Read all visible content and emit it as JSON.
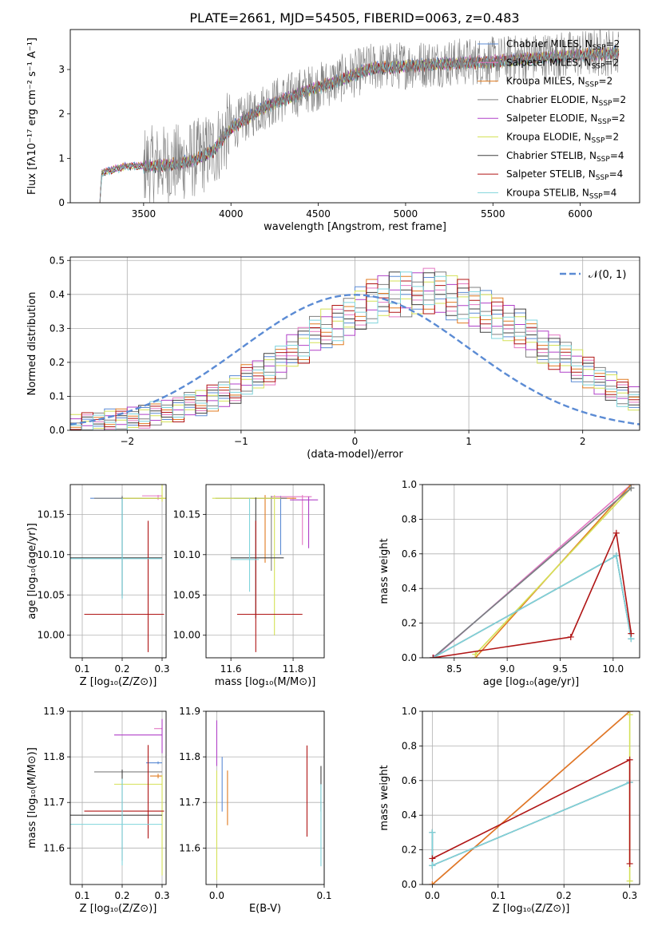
{
  "figure": {
    "title": "PLATE=2661, MJD=54505, FIBERID=0063, z=0.483",
    "legend_entries": [
      {
        "label": "Chabrier MILES, N",
        "sub": "SSP",
        "suffix": "=2",
        "color": "#5b8bd4"
      },
      {
        "label": "Salpeter MILES, N",
        "sub": "SSP",
        "suffix": "=2",
        "color": "#e377c2"
      },
      {
        "label": "Kroupa MILES, N",
        "sub": "SSP",
        "suffix": "=2",
        "color": "#e07b20"
      },
      {
        "label": "Chabrier ELODIE, N",
        "sub": "SSP",
        "suffix": "=2",
        "color": "#7f7f7f"
      },
      {
        "label": "Salpeter ELODIE, N",
        "sub": "SSP",
        "suffix": "=2",
        "color": "#b040c8"
      },
      {
        "label": "Kroupa ELODIE, N",
        "sub": "SSP",
        "suffix": "=2",
        "color": "#d4e157"
      },
      {
        "label": "Chabrier STELIB, N",
        "sub": "SSP",
        "suffix": "=4",
        "color": "#404040"
      },
      {
        "label": "Salpeter STELIB, N",
        "sub": "SSP",
        "suffix": "=4",
        "color": "#b01515"
      },
      {
        "label": "Kroupa STELIB, N",
        "sub": "SSP",
        "suffix": "=4",
        "color": "#7fd4dc"
      }
    ]
  },
  "chart_data": [
    {
      "id": "spectrum",
      "type": "line",
      "xlabel": "wavelength [Angstrom, rest frame]",
      "ylabel": "Flux [fλ10⁻¹⁷ erg cm⁻² s⁻¹ A⁻¹]",
      "xlim": [
        3080,
        6340
      ],
      "ylim": [
        0,
        3.9
      ],
      "xticks": [
        3500,
        4000,
        4500,
        5000,
        5500,
        6000
      ],
      "yticks": [
        0,
        1,
        2,
        3
      ],
      "data_color": "#808080",
      "continuum_anchors": [
        [
          3250,
          0.0
        ],
        [
          3260,
          0.7
        ],
        [
          3400,
          0.85
        ],
        [
          3560,
          0.85
        ],
        [
          3700,
          0.9
        ],
        [
          3800,
          1.0
        ],
        [
          3900,
          1.2
        ],
        [
          4000,
          1.7
        ],
        [
          4200,
          2.2
        ],
        [
          4400,
          2.5
        ],
        [
          4600,
          2.75
        ],
        [
          4800,
          3.05
        ],
        [
          5000,
          3.1
        ],
        [
          5200,
          3.15
        ],
        [
          5500,
          3.2
        ],
        [
          5800,
          3.3
        ],
        [
          6200,
          3.4
        ]
      ]
    },
    {
      "id": "residuals",
      "type": "line",
      "xlabel": "(data-model)/error",
      "ylabel": "Normed distribution",
      "xlim": [
        -2.5,
        2.5
      ],
      "ylim": [
        0,
        0.51
      ],
      "xticks": [
        -2,
        -1,
        0,
        1,
        2
      ],
      "yticks": [
        0.0,
        0.1,
        0.2,
        0.3,
        0.4,
        0.5
      ],
      "normal_label": "𝒩(0, 1)",
      "normal_color": "#5b8bd4",
      "hist_bin_width": 0.1,
      "hist_values": [
        0.015,
        0.02,
        0.025,
        0.03,
        0.03,
        0.035,
        0.04,
        0.05,
        0.06,
        0.06,
        0.075,
        0.08,
        0.095,
        0.11,
        0.12,
        0.15,
        0.16,
        0.18,
        0.2,
        0.24,
        0.25,
        0.28,
        0.3,
        0.31,
        0.34,
        0.36,
        0.38,
        0.39,
        0.4,
        0.4,
        0.41,
        0.41,
        0.4,
        0.39,
        0.38,
        0.37,
        0.35,
        0.33,
        0.31,
        0.3,
        0.27,
        0.25,
        0.23,
        0.21,
        0.19,
        0.17,
        0.15,
        0.13,
        0.11,
        0.09
      ]
    },
    {
      "id": "age-vs-Z",
      "type": "scatter",
      "xlabel": "Z [log₁₀(Z/Z⊙)]",
      "ylabel": "age  [log₁₀(age/yr)]",
      "xlim": [
        0.07,
        0.31
      ],
      "ylim": [
        9.972,
        10.187
      ],
      "xticks": [
        0.1,
        0.2,
        0.3
      ],
      "yticks": [
        10.0,
        10.05,
        10.1,
        10.15
      ],
      "points": [
        {
          "series": 0,
          "x": 0.2,
          "xerr": [
            0.08,
            0.1
          ],
          "y": 10.17,
          "yerr": [
            0.12,
            0.003
          ]
        },
        {
          "series": 1,
          "x": 0.29,
          "xerr": [
            0.04,
            0.01
          ],
          "y": 10.173,
          "yerr": [
            0.005,
            0.001
          ]
        },
        {
          "series": 2,
          "x": 0.3,
          "xerr": [
            0.1,
            0.01
          ],
          "y": 10.17,
          "yerr": [
            0.004,
            0.004
          ]
        },
        {
          "series": 3,
          "x": 0.2,
          "xerr": [
            0.07,
            0.1
          ],
          "y": 10.17,
          "yerr": [
            0.12,
            0.003
          ]
        },
        {
          "series": 5,
          "x": 0.3,
          "xerr": [
            0.1,
            0.01
          ],
          "y": 10.17,
          "yerr": [
            0.004,
            0.17
          ]
        },
        {
          "series": 6,
          "x": 0.2,
          "xerr": [
            0.13,
            0.1
          ],
          "y": 10.096,
          "yerr": [
            0.05,
            0.075
          ]
        },
        {
          "series": 7,
          "x": 0.265,
          "xerr": [
            0.16,
            0.04
          ],
          "y": 10.026,
          "yerr": [
            0.047,
            0.116
          ]
        },
        {
          "series": 8,
          "x": 0.2,
          "xerr": [
            0.13,
            0.1
          ],
          "y": 10.095,
          "yerr": [
            0.05,
            0.075
          ]
        }
      ]
    },
    {
      "id": "age-vs-mass",
      "type": "scatter",
      "xlabel": "mass [log₁₀(M/M⊙)]",
      "ylabel": "",
      "xlim": [
        11.52,
        11.9
      ],
      "ylim": [
        9.972,
        10.187
      ],
      "xticks": [
        11.6,
        11.8
      ],
      "yticks": [
        10.0,
        10.05,
        10.1,
        10.15
      ],
      "points": [
        {
          "series": 0,
          "x": 11.76,
          "xerr": [
            0.15,
            0.02
          ],
          "y": 10.17,
          "yerr": [
            0.07,
            0.003
          ]
        },
        {
          "series": 1,
          "x": 11.83,
          "xerr": [
            0.1,
            0.03
          ],
          "y": 10.172,
          "yerr": [
            0.06,
            0.002
          ]
        },
        {
          "series": 2,
          "x": 11.71,
          "xerr": [
            0.04,
            0.1
          ],
          "y": 10.17,
          "yerr": [
            0.08,
            0.004
          ]
        },
        {
          "series": 3,
          "x": 11.73,
          "xerr": [
            0.18,
            0.05
          ],
          "y": 10.17,
          "yerr": [
            0.09,
            0.003
          ]
        },
        {
          "series": 4,
          "x": 11.85,
          "xerr": [
            0.06,
            0.03
          ],
          "y": 10.168,
          "yerr": [
            0.06,
            0.004
          ]
        },
        {
          "series": 5,
          "x": 11.74,
          "xerr": [
            0.2,
            0.02
          ],
          "y": 10.17,
          "yerr": [
            0.17,
            0.004
          ]
        },
        {
          "series": 6,
          "x": 11.68,
          "xerr": [
            0.08,
            0.09
          ],
          "y": 10.096,
          "yerr": [
            0.075,
            0.075
          ]
        },
        {
          "series": 7,
          "x": 11.68,
          "xerr": [
            0.06,
            0.15
          ],
          "y": 10.026,
          "yerr": [
            0.047,
            0.116
          ]
        },
        {
          "series": 8,
          "x": 11.66,
          "xerr": [
            0.06,
            0.03
          ],
          "y": 10.094,
          "yerr": [
            0.04,
            0.076
          ]
        }
      ]
    },
    {
      "id": "weight-vs-age",
      "type": "line",
      "xlabel": "age  [log₁₀(age/yr)]",
      "ylabel": "mass weight",
      "xlim": [
        8.2,
        10.25
      ],
      "ylim": [
        0,
        1
      ],
      "xticks": [
        8.5,
        9.0,
        9.5,
        10.0
      ],
      "yticks": [
        0.0,
        0.2,
        0.4,
        0.6,
        0.8,
        1.0
      ],
      "lines": [
        {
          "series": 1,
          "x": [
            8.31,
            10.17
          ],
          "y": [
            0.0,
            1.0
          ]
        },
        {
          "series": 2,
          "x": [
            8.7,
            10.17
          ],
          "y": [
            0.0,
            1.0
          ]
        },
        {
          "series": 5,
          "x": [
            8.7,
            10.17
          ],
          "y": [
            0.02,
            0.98
          ]
        },
        {
          "series": 0,
          "x": [
            8.3,
            10.17
          ],
          "y": [
            0.0,
            0.98
          ]
        },
        {
          "series": 3,
          "x": [
            8.3,
            10.17
          ],
          "y": [
            0.0,
            0.98
          ]
        },
        {
          "series": 6,
          "x": [
            8.3,
            10.03,
            10.17
          ],
          "y": [
            0.0,
            0.59,
            0.11
          ]
        },
        {
          "series": 8,
          "x": [
            8.3,
            10.03,
            10.17
          ],
          "y": [
            0.0,
            0.59,
            0.11
          ]
        },
        {
          "series": 7,
          "x": [
            8.3,
            9.6,
            10.03,
            10.17
          ],
          "y": [
            0.0,
            0.12,
            0.72,
            0.14
          ]
        }
      ]
    },
    {
      "id": "mass-vs-Z",
      "type": "scatter",
      "xlabel": "Z [log₁₀(Z/Z⊙)]",
      "ylabel": "mass [log₁₀(M/M⊙)]",
      "xlim": [
        0.07,
        0.31
      ],
      "ylim": [
        11.52,
        11.9
      ],
      "xticks": [
        0.1,
        0.2,
        0.3
      ],
      "yticks": [
        11.6,
        11.7,
        11.8,
        11.9
      ],
      "points": [
        {
          "series": 0,
          "x": 0.29,
          "xerr": [
            0.03,
            0.01
          ],
          "y": 11.787,
          "yerr": [
            0.003,
            0.003
          ]
        },
        {
          "series": 1,
          "x": 0.3,
          "xerr": [
            0.02,
            0.0
          ],
          "y": 11.862,
          "yerr": [
            0.002,
            0.002
          ]
        },
        {
          "series": 2,
          "x": 0.29,
          "xerr": [
            0.02,
            0.01
          ],
          "y": 11.758,
          "yerr": [
            0.005,
            0.005
          ]
        },
        {
          "series": 3,
          "x": 0.2,
          "xerr": [
            0.07,
            0.1
          ],
          "y": 11.767,
          "yerr": [
            0.002,
            0.002
          ]
        },
        {
          "series": 4,
          "x": 0.3,
          "xerr": [
            0.12,
            0.0
          ],
          "y": 11.848,
          "yerr": [
            0.04,
            0.035
          ]
        },
        {
          "series": 5,
          "x": 0.3,
          "xerr": [
            0.12,
            0.0
          ],
          "y": 11.74,
          "yerr": [
            0.2,
            0.02
          ]
        },
        {
          "series": 6,
          "x": 0.2,
          "xerr": [
            0.13,
            0.1
          ],
          "y": 11.672,
          "yerr": [
            0.1,
            0.1
          ]
        },
        {
          "series": 7,
          "x": 0.265,
          "xerr": [
            0.16,
            0.04
          ],
          "y": 11.681,
          "yerr": [
            0.06,
            0.145
          ]
        },
        {
          "series": 8,
          "x": 0.2,
          "xerr": [
            0.13,
            0.1
          ],
          "y": 11.652,
          "yerr": [
            0.09,
            0.1
          ]
        }
      ]
    },
    {
      "id": "mass-vs-EBV",
      "type": "scatter",
      "xlabel": "E(B-V)",
      "ylabel": "",
      "xlim": [
        -0.01,
        0.1
      ],
      "ylim": [
        11.52,
        11.9
      ],
      "xticks": [
        0.0,
        0.1
      ],
      "yticks": [
        11.6,
        11.7,
        11.8,
        11.9
      ],
      "points": [
        {
          "series": 4,
          "x": 0.0,
          "xerr": [
            0.0,
            0.0
          ],
          "y": 11.83,
          "yerr": [
            0.05,
            0.05
          ]
        },
        {
          "series": 0,
          "x": 0.005,
          "xerr": [
            0.0,
            0.0
          ],
          "y": 11.74,
          "yerr": [
            0.06,
            0.06
          ]
        },
        {
          "series": 2,
          "x": 0.01,
          "xerr": [
            0.0,
            0.0
          ],
          "y": 11.71,
          "yerr": [
            0.06,
            0.06
          ]
        },
        {
          "series": 5,
          "x": 0.0,
          "xerr": [
            0.0,
            0.0
          ],
          "y": 11.65,
          "yerr": [
            0.12,
            0.12
          ]
        },
        {
          "series": 7,
          "x": 0.084,
          "xerr": [
            0.0,
            0.0
          ],
          "y": 11.725,
          "yerr": [
            0.1,
            0.1
          ]
        },
        {
          "series": 6,
          "x": 0.097,
          "xerr": [
            0.0,
            0.0
          ],
          "y": 11.73,
          "yerr": [
            0.05,
            0.05
          ]
        },
        {
          "series": 8,
          "x": 0.097,
          "xerr": [
            0.0,
            0.0
          ],
          "y": 11.65,
          "yerr": [
            0.09,
            0.09
          ]
        }
      ]
    },
    {
      "id": "weight-vs-Z",
      "type": "line",
      "xlabel": "Z [log₁₀(Z/Z⊙)]",
      "ylabel": "mass weight",
      "xlim": [
        -0.015,
        0.315
      ],
      "ylim": [
        0,
        1
      ],
      "xticks": [
        0.0,
        0.1,
        0.2,
        0.3
      ],
      "yticks": [
        0.0,
        0.2,
        0.4,
        0.6,
        0.8,
        1.0
      ],
      "lines": [
        {
          "series": 1,
          "x": [
            0.0,
            0.3
          ],
          "y": [
            0.0,
            1.0
          ]
        },
        {
          "series": 2,
          "x": [
            0.0,
            0.3
          ],
          "y": [
            0.0,
            1.0
          ]
        },
        {
          "series": 5,
          "x": [
            0.3,
            0.3
          ],
          "y": [
            0.02,
            0.98
          ]
        },
        {
          "series": 6,
          "x": [
            0.0,
            0.0,
            0.3
          ],
          "y": [
            0.3,
            0.11,
            0.59
          ]
        },
        {
          "series": 8,
          "x": [
            0.0,
            0.0,
            0.3
          ],
          "y": [
            0.3,
            0.11,
            0.59
          ]
        },
        {
          "series": 7,
          "x": [
            0.0,
            0.3,
            0.3
          ],
          "y": [
            0.15,
            0.72,
            0.12
          ]
        }
      ]
    }
  ]
}
